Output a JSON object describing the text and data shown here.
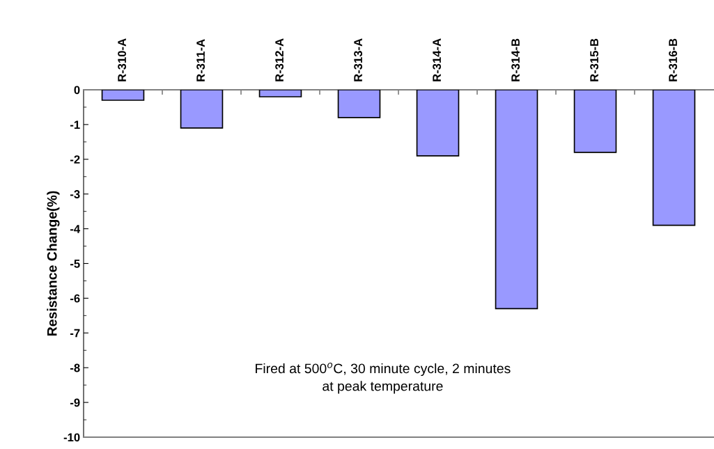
{
  "chart_data": {
    "type": "bar",
    "ylabel": "Resistance Change(%)",
    "categories": [
      "R-310-A",
      "R-311-A",
      "R-312-A",
      "R-313-A",
      "R-314-A",
      "R-314-B",
      "R-315-B",
      "R-316-B"
    ],
    "values": [
      -0.3,
      -1.1,
      -0.2,
      -0.8,
      -1.9,
      -6.3,
      -1.8,
      -3.9
    ],
    "color": "#9999ff",
    "ylim": [
      -10,
      0
    ],
    "yticks": [
      -10,
      -9,
      -8,
      -7,
      -6,
      -5,
      -4,
      -3,
      -2,
      -1,
      0
    ],
    "grid": false,
    "annotations": [
      "Fired at 500$^{o}$C, 30 minute cycle, 2 minutes\nat peak temperature"
    ]
  }
}
